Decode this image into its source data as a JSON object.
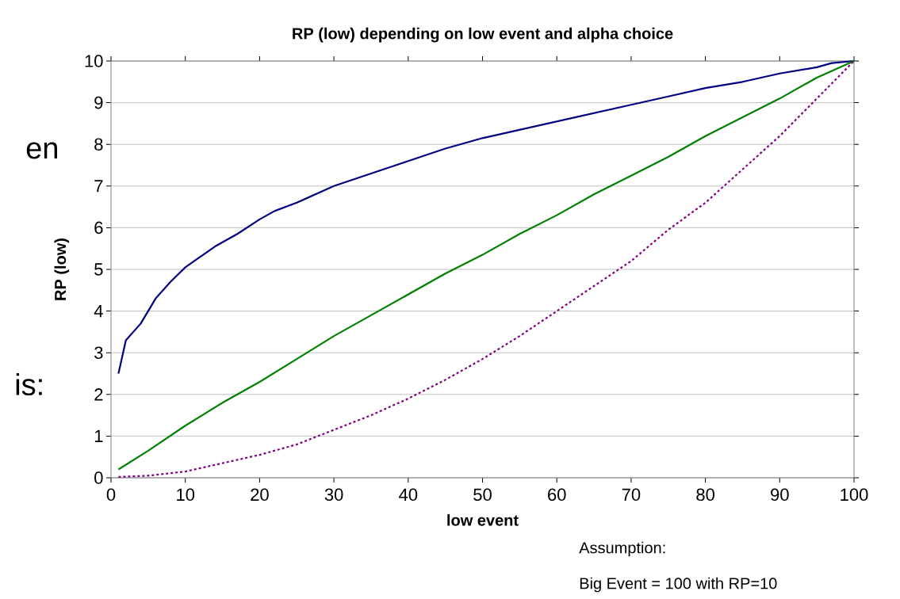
{
  "chart_data": {
    "type": "line",
    "title": "RP (low) depending on low event and alpha choice",
    "xlabel": "low event",
    "ylabel": "RP (low)",
    "annotations": [
      "en",
      "is:",
      "Assumption:",
      "Big Event = 100 with RP=10"
    ],
    "xlim": [
      0,
      100
    ],
    "xticks": [
      0,
      10,
      20,
      30,
      40,
      50,
      60,
      70,
      80,
      90,
      100
    ],
    "ylim": [
      0,
      10
    ],
    "yticks": [
      0,
      1,
      2,
      3,
      4,
      5,
      6,
      7,
      8,
      9,
      10
    ],
    "grid": "y",
    "series": [
      {
        "color": "#000080",
        "line_style": "solid",
        "x": [
          1,
          2,
          4,
          6,
          8,
          10,
          12,
          14,
          17,
          20,
          22,
          25,
          30,
          35,
          40,
          45,
          50,
          55,
          60,
          65,
          70,
          75,
          80,
          85,
          90,
          95,
          97,
          100
        ],
        "values": [
          2.5,
          3.3,
          3.7,
          4.3,
          4.7,
          5.05,
          5.3,
          5.55,
          5.85,
          6.2,
          6.4,
          6.6,
          7.0,
          7.3,
          7.6,
          7.9,
          8.15,
          8.35,
          8.55,
          8.75,
          8.95,
          9.15,
          9.35,
          9.5,
          9.7,
          9.85,
          9.95,
          10
        ]
      },
      {
        "color": "#008000",
        "line_style": "solid",
        "x": [
          1,
          5,
          10,
          15,
          20,
          25,
          30,
          35,
          40,
          45,
          50,
          55,
          60,
          65,
          70,
          75,
          80,
          85,
          90,
          95,
          100
        ],
        "values": [
          0.2,
          0.65,
          1.25,
          1.8,
          2.3,
          2.85,
          3.4,
          3.9,
          4.4,
          4.9,
          5.35,
          5.85,
          6.3,
          6.8,
          7.25,
          7.7,
          8.2,
          8.65,
          9.1,
          9.6,
          10
        ]
      },
      {
        "color": "#800080",
        "line_style": "dashed",
        "x": [
          1,
          5,
          10,
          15,
          20,
          25,
          30,
          35,
          40,
          45,
          50,
          55,
          60,
          65,
          70,
          75,
          80,
          85,
          90,
          95,
          100
        ],
        "values": [
          0.02,
          0.05,
          0.15,
          0.35,
          0.55,
          0.8,
          1.15,
          1.5,
          1.9,
          2.35,
          2.85,
          3.4,
          4.0,
          4.6,
          5.2,
          5.95,
          6.6,
          7.4,
          8.2,
          9.1,
          10
        ]
      }
    ]
  }
}
